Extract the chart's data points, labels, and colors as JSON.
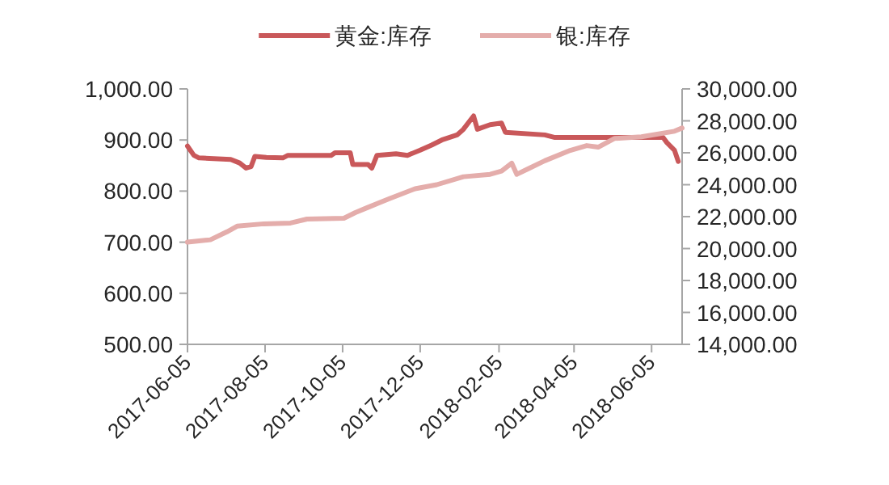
{
  "chart_data": {
    "type": "line",
    "legend": "top",
    "xlim": [
      "2017-06-05",
      "2018-06-29"
    ],
    "xticks": [
      "2017-06-05",
      "2017-08-05",
      "2017-10-05",
      "2017-12-05",
      "2018-02-05",
      "2018-04-05",
      "2018-06-05"
    ],
    "ylim": [
      500,
      1000
    ],
    "yticks": [
      {
        "value": 500,
        "label": "500.00"
      },
      {
        "value": 600,
        "label": "600.00"
      },
      {
        "value": 700,
        "label": "700.00"
      },
      {
        "value": 800,
        "label": "800.00"
      },
      {
        "value": 900,
        "label": "900.00"
      },
      {
        "value": 1000,
        "label": "1,000.00"
      }
    ],
    "y2lim": [
      14000,
      30000
    ],
    "y2ticks": [
      {
        "value": 14000,
        "label": "14,000.00"
      },
      {
        "value": 16000,
        "label": "16,000.00"
      },
      {
        "value": 18000,
        "label": "18,000.00"
      },
      {
        "value": 20000,
        "label": "20,000.00"
      },
      {
        "value": 22000,
        "label": "22,000.00"
      },
      {
        "value": 24000,
        "label": "24,000.00"
      },
      {
        "value": 26000,
        "label": "26,000.00"
      },
      {
        "value": 28000,
        "label": "28,000.00"
      },
      {
        "value": 30000,
        "label": "30,000.00"
      }
    ],
    "series": [
      {
        "name": "黄金:库存",
        "color": "#c9585a",
        "x": [
          "2017-06-05",
          "2017-06-10",
          "2017-06-14",
          "2017-07-09",
          "2017-07-16",
          "2017-07-21",
          "2017-07-25",
          "2017-07-28",
          "2017-08-06",
          "2017-08-19",
          "2017-08-23",
          "2017-09-26",
          "2017-09-29",
          "2017-10-11",
          "2017-10-13",
          "2017-10-25",
          "2017-10-28",
          "2017-11-01",
          "2017-11-16",
          "2017-11-25",
          "2017-12-05",
          "2017-12-14",
          "2017-12-22",
          "2018-01-03",
          "2018-01-08",
          "2018-01-16",
          "2018-01-19",
          "2018-01-29",
          "2018-02-07",
          "2018-02-10",
          "2018-03-13",
          "2018-03-21",
          "2018-06-14",
          "2018-06-17",
          "2018-06-23",
          "2018-06-26"
        ],
        "values": [
          888,
          870,
          865,
          862,
          855,
          845,
          848,
          868,
          866,
          865,
          870,
          870,
          875,
          875,
          852,
          852,
          845,
          870,
          873,
          870,
          880,
          890,
          900,
          910,
          921,
          947,
          921,
          930,
          933,
          915,
          910,
          905,
          905,
          895,
          880,
          858
        ]
      },
      {
        "name": "银:库存",
        "color": "#e4adab",
        "axis": "y2",
        "x": [
          "2017-06-05",
          "2017-06-23",
          "2017-07-06",
          "2017-07-14",
          "2017-08-04",
          "2017-08-25",
          "2017-09-07",
          "2017-10-06",
          "2017-10-15",
          "2017-10-24",
          "2017-11-10",
          "2017-12-01",
          "2017-12-18",
          "2018-01-08",
          "2018-01-29",
          "2018-02-07",
          "2018-02-15",
          "2018-02-19",
          "2018-02-28",
          "2018-03-13",
          "2018-04-02",
          "2018-04-15",
          "2018-04-24",
          "2018-05-07",
          "2018-05-28",
          "2018-06-23",
          "2018-06-29"
        ],
        "values": [
          20400,
          20550,
          21050,
          21400,
          21550,
          21600,
          21850,
          21900,
          22250,
          22550,
          23100,
          23750,
          24000,
          24500,
          24650,
          24850,
          25350,
          24650,
          25000,
          25500,
          26150,
          26450,
          26350,
          26900,
          27000,
          27350,
          27550
        ]
      }
    ]
  }
}
